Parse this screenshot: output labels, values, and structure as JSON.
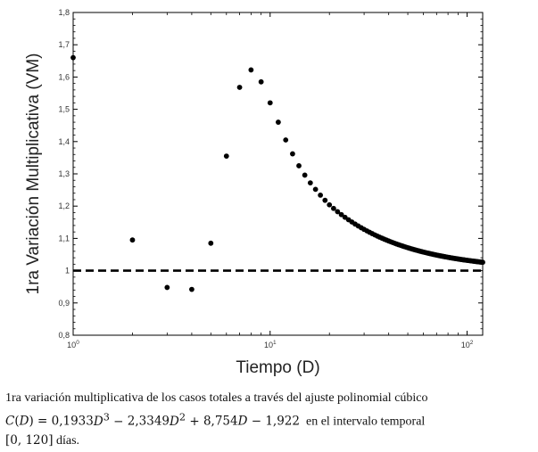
{
  "chart_data": {
    "type": "scatter",
    "xlabel": "Tiempo (D)",
    "ylabel": "1ra Variación Multiplicativa (VM)",
    "xscale": "log",
    "xlim": [
      1,
      120
    ],
    "ylim": [
      0.8,
      1.8
    ],
    "x_ticks": [
      {
        "value": 1,
        "base": "10",
        "exp": "0"
      },
      {
        "value": 10,
        "base": "10",
        "exp": "1"
      },
      {
        "value": 100,
        "base": "10",
        "exp": "2"
      }
    ],
    "y_ticks": [
      "0,8",
      "0,9",
      "1",
      "1,1",
      "1,2",
      "1,3",
      "1,4",
      "1,5",
      "1,6",
      "1,7",
      "1,8"
    ],
    "y_tick_values": [
      0.8,
      0.9,
      1.0,
      1.1,
      1.2,
      1.3,
      1.4,
      1.5,
      1.6,
      1.7,
      1.8
    ],
    "reference_line": {
      "y": 1.0,
      "style": "dashed"
    },
    "marker_color": "#000000",
    "grid": false,
    "points_explicit": [
      [
        1,
        1.66
      ],
      [
        2,
        1.095
      ],
      [
        3,
        0.948
      ],
      [
        4,
        0.942
      ],
      [
        5,
        1.085
      ],
      [
        6,
        1.355
      ],
      [
        7,
        1.568
      ],
      [
        8,
        1.622
      ],
      [
        9,
        1.585
      ],
      [
        10,
        1.52
      ],
      [
        11,
        1.46
      ],
      [
        12,
        1.405
      ],
      [
        13,
        1.362
      ],
      [
        14,
        1.325
      ],
      [
        15,
        1.296
      ],
      [
        16,
        1.272
      ],
      [
        17,
        1.252
      ],
      [
        18,
        1.234
      ],
      [
        19,
        1.218
      ],
      [
        20,
        1.204
      ]
    ],
    "points_tail": {
      "x_from": 21,
      "x_to": 120,
      "x_step": 1,
      "y_at_20": 1.204,
      "y_at_120": 1.026,
      "shape": "power-law decay"
    }
  },
  "caption": {
    "line1": "1ra variación multiplicativa de los casos totales a través del ajuste polinomial cúbico",
    "formula_parts": [
      "0,1933",
      "2,3349",
      "8,754",
      "1,922"
    ],
    "text_after_formula": "en el intervalo temporal",
    "interval": "[0, 120]",
    "unit": "días."
  }
}
